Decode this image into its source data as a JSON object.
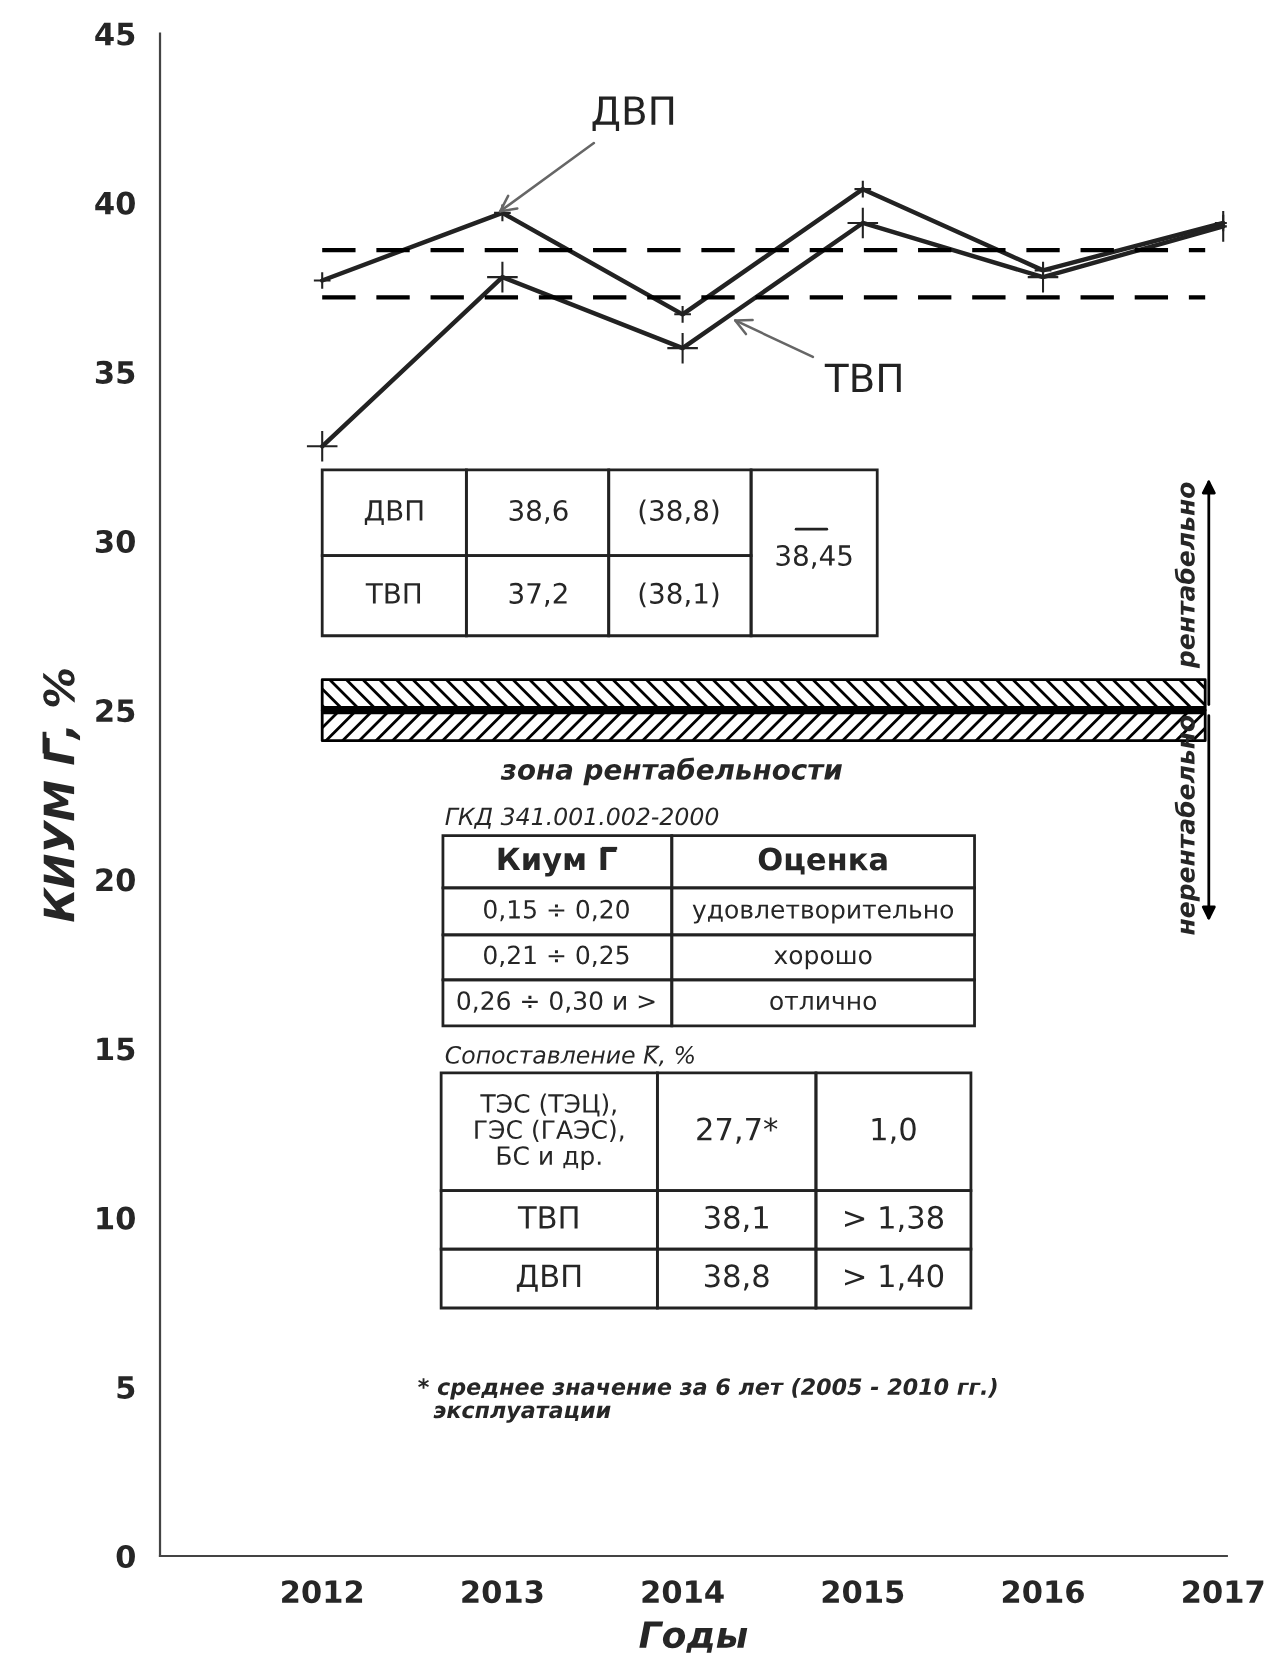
{
  "chart_data": {
    "type": "line",
    "xlabel": "Годы",
    "ylabel": "КИУМ Г̅, %",
    "x": [
      2012,
      2013,
      2014,
      2015,
      2016,
      2017
    ],
    "series": [
      {
        "name": "ДВП",
        "color": "#222222",
        "values": [
          37.7,
          39.7,
          36.7,
          40.4,
          38.0,
          39.4
        ]
      },
      {
        "name": "ТВП",
        "color": "#222222",
        "values": [
          32.8,
          37.8,
          35.7,
          39.4,
          37.8,
          39.3
        ]
      }
    ],
    "marker": "cross",
    "line_style": "solid",
    "legend": false,
    "grid": false,
    "xlim": [
      2011.1,
      2017.02
    ],
    "xticks": [
      2012,
      2013,
      2014,
      2015,
      2016,
      2017
    ],
    "ylim": [
      0,
      45
    ],
    "yticks": [
      0,
      5,
      10,
      15,
      20,
      25,
      30,
      35,
      40,
      45
    ],
    "ref_lines": [
      {
        "axis": "y",
        "value": 38.6,
        "color": "#000000",
        "line_style": "dashed"
      },
      {
        "axis": "y",
        "value": 37.2,
        "color": "#000000",
        "line_style": "dashed"
      },
      {
        "axis": "y",
        "value": 25,
        "color": "#000000",
        "line_style": "solid"
      }
    ],
    "bands": [
      {
        "axis": "y",
        "from": 25,
        "to": 25.9,
        "color": "#000000",
        "label": "зона рентабельности"
      },
      {
        "axis": "y",
        "from": 24.1,
        "to": 25,
        "color": "#000000"
      }
    ],
    "annotations": [
      "ДВП",
      "38,6",
      "(38,8)",
      "ТВП",
      "37,2",
      "(38,1)",
      "38,45",
      "ГКД 341.001.002-2000",
      "Киум Г̅",
      "Оценка",
      "0,15 ÷ 0,20",
      "удовлетворительно",
      "0,21 ÷ 0,25",
      "хорошо",
      "0,26 ÷ 0,30 и >",
      "отлично",
      "Сопоставление K̅, %",
      "ТЭС (ТЭЦ),\nГЭС (ГАЭС),\nБС и др.",
      "27,7*",
      "1,0",
      "ТВП",
      "38,1",
      "> 1,38",
      "ДВП",
      "38,8",
      "> 1,40",
      "* среднее значение за 6 лет (2005 - 2010 гг.)\n  эксплуатации",
      "рентабельно",
      "нерентабельно"
    ]
  }
}
